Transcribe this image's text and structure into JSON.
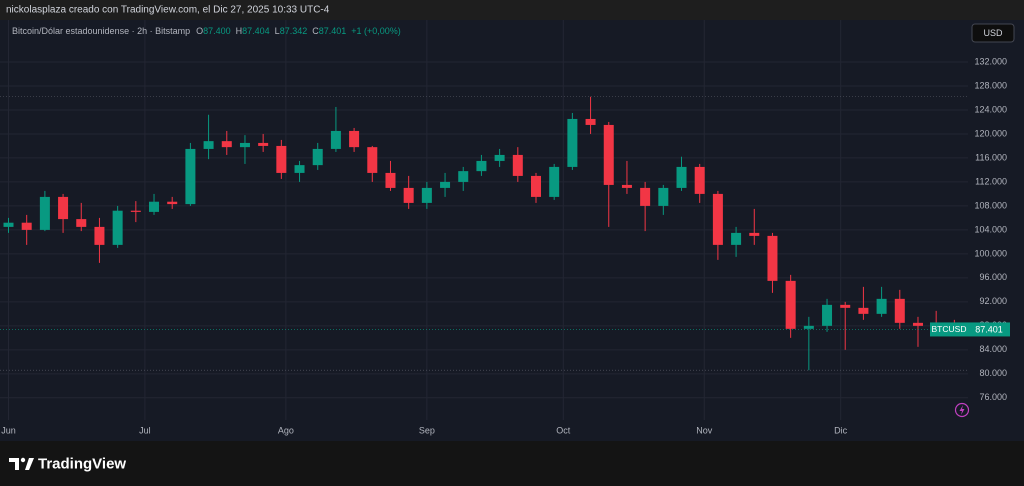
{
  "header": "nickolasplaza creado con TradingView.com, el Dic 27, 2025 10:33 UTC-4",
  "legend": {
    "symbol": "Bitcoin/Dólar estadounidense · 2h · Bitstamp",
    "o_label": "O",
    "o": "87.400",
    "h_label": "H",
    "h": "87.404",
    "l_label": "L",
    "l": "87.342",
    "c_label": "C",
    "c": "87.401",
    "change": "+1 (+0,00%)"
  },
  "currency_button": "USD",
  "brand": "TradingView",
  "chart_data": {
    "type": "candlestick",
    "up_color": "#089981",
    "down_color": "#f23645",
    "grid": true,
    "x": [
      "2025-06-01",
      "2025-06-05",
      "2025-06-09",
      "2025-06-13",
      "2025-06-17",
      "2025-06-21",
      "2025-06-25",
      "2025-06-29",
      "2025-07-03",
      "2025-07-07",
      "2025-07-11",
      "2025-07-15",
      "2025-07-19",
      "2025-07-23",
      "2025-07-27",
      "2025-07-31",
      "2025-08-04",
      "2025-08-08",
      "2025-08-12",
      "2025-08-16",
      "2025-08-20",
      "2025-08-24",
      "2025-08-28",
      "2025-09-01",
      "2025-09-05",
      "2025-09-09",
      "2025-09-13",
      "2025-09-17",
      "2025-09-21",
      "2025-09-25",
      "2025-09-29",
      "2025-10-03",
      "2025-10-07",
      "2025-10-11",
      "2025-10-15",
      "2025-10-19",
      "2025-10-23",
      "2025-10-27",
      "2025-10-31",
      "2025-11-04",
      "2025-11-08",
      "2025-11-12",
      "2025-11-16",
      "2025-11-20",
      "2025-11-24",
      "2025-11-28",
      "2025-12-02",
      "2025-12-06",
      "2025-12-10",
      "2025-12-14",
      "2025-12-18",
      "2025-12-22",
      "2025-12-26"
    ],
    "open": [
      104500,
      105200,
      104000,
      109500,
      105800,
      104500,
      101500,
      107200,
      107000,
      108700,
      108300,
      117500,
      118800,
      117800,
      118500,
      118000,
      113500,
      114800,
      117500,
      120500,
      117800,
      113500,
      111000,
      108500,
      111000,
      112000,
      113800,
      115500,
      116500,
      113000,
      109500,
      114500,
      122500,
      121500,
      111500,
      111000,
      108000,
      111000,
      114500,
      110000,
      101500,
      103500,
      103000,
      95500,
      87500,
      88000,
      91500,
      91000,
      90000,
      92500,
      88500,
      88000,
      87800
    ],
    "high": [
      106000,
      106500,
      110500,
      110000,
      108500,
      106000,
      108000,
      108800,
      110000,
      109500,
      118500,
      123200,
      120500,
      119800,
      120000,
      119000,
      115500,
      118500,
      124500,
      121000,
      118000,
      115500,
      113000,
      112000,
      113500,
      114500,
      116500,
      117500,
      117800,
      113500,
      115000,
      123500,
      126200,
      122000,
      115500,
      112000,
      111500,
      116200,
      115000,
      110500,
      104500,
      107500,
      103500,
      96500,
      89500,
      92500,
      92000,
      94500,
      94500,
      94000,
      89500,
      90500,
      89000
    ],
    "low": [
      103500,
      101500,
      103800,
      103500,
      103800,
      98500,
      101000,
      105300,
      106500,
      107500,
      108000,
      115800,
      116500,
      115000,
      117000,
      112500,
      112000,
      114000,
      117000,
      117000,
      112000,
      110500,
      107500,
      107500,
      109500,
      110500,
      113000,
      114500,
      112000,
      108500,
      109000,
      114000,
      120000,
      104500,
      110000,
      103800,
      106500,
      110500,
      108500,
      99000,
      99500,
      101500,
      93500,
      86000,
      80600,
      87000,
      84000,
      89000,
      89500,
      87500,
      84500,
      86500,
      86800
    ],
    "close": [
      105200,
      104000,
      109500,
      105800,
      104500,
      101500,
      107200,
      107000,
      108700,
      108300,
      117500,
      118800,
      117800,
      118500,
      118000,
      113500,
      114800,
      117500,
      120500,
      117800,
      113500,
      111000,
      108500,
      111000,
      112000,
      113800,
      115500,
      116500,
      113000,
      109500,
      114500,
      122500,
      121500,
      111500,
      111000,
      108000,
      111000,
      114500,
      110000,
      101500,
      103500,
      103000,
      95500,
      87500,
      88000,
      91500,
      91000,
      90000,
      92500,
      88500,
      88000,
      87800,
      87401
    ],
    "last_price": {
      "label": "BTCUSD",
      "value": 87401,
      "value_label": "87.401"
    },
    "xlim": [
      "2025-06-01",
      "2025-12-29"
    ],
    "xticks": [
      {
        "value": "2025-06-01",
        "label": "Jun"
      },
      {
        "value": "2025-07-01",
        "label": "Jul"
      },
      {
        "value": "2025-08-01",
        "label": "Ago"
      },
      {
        "value": "2025-09-01",
        "label": "Sep"
      },
      {
        "value": "2025-10-01",
        "label": "Oct"
      },
      {
        "value": "2025-11-01",
        "label": "Nov"
      },
      {
        "value": "2025-12-01",
        "label": "Dic"
      }
    ],
    "ylim": [
      72300,
      139000
    ],
    "yticks": [
      {
        "value": 76000,
        "label": "76.000"
      },
      {
        "value": 80000,
        "label": "80.000"
      },
      {
        "value": 84000,
        "label": "84.000"
      },
      {
        "value": 88000,
        "label": "88.000"
      },
      {
        "value": 92000,
        "label": "92.000"
      },
      {
        "value": 96000,
        "label": "96.000"
      },
      {
        "value": 100000,
        "label": "100.000"
      },
      {
        "value": 104000,
        "label": "104.000"
      },
      {
        "value": 108000,
        "label": "108.000"
      },
      {
        "value": 112000,
        "label": "112.000"
      },
      {
        "value": 116000,
        "label": "116.000"
      },
      {
        "value": 120000,
        "label": "120.000"
      },
      {
        "value": 124000,
        "label": "124.000"
      },
      {
        "value": 128000,
        "label": "128.000"
      },
      {
        "value": 132000,
        "label": "132.000"
      }
    ]
  }
}
